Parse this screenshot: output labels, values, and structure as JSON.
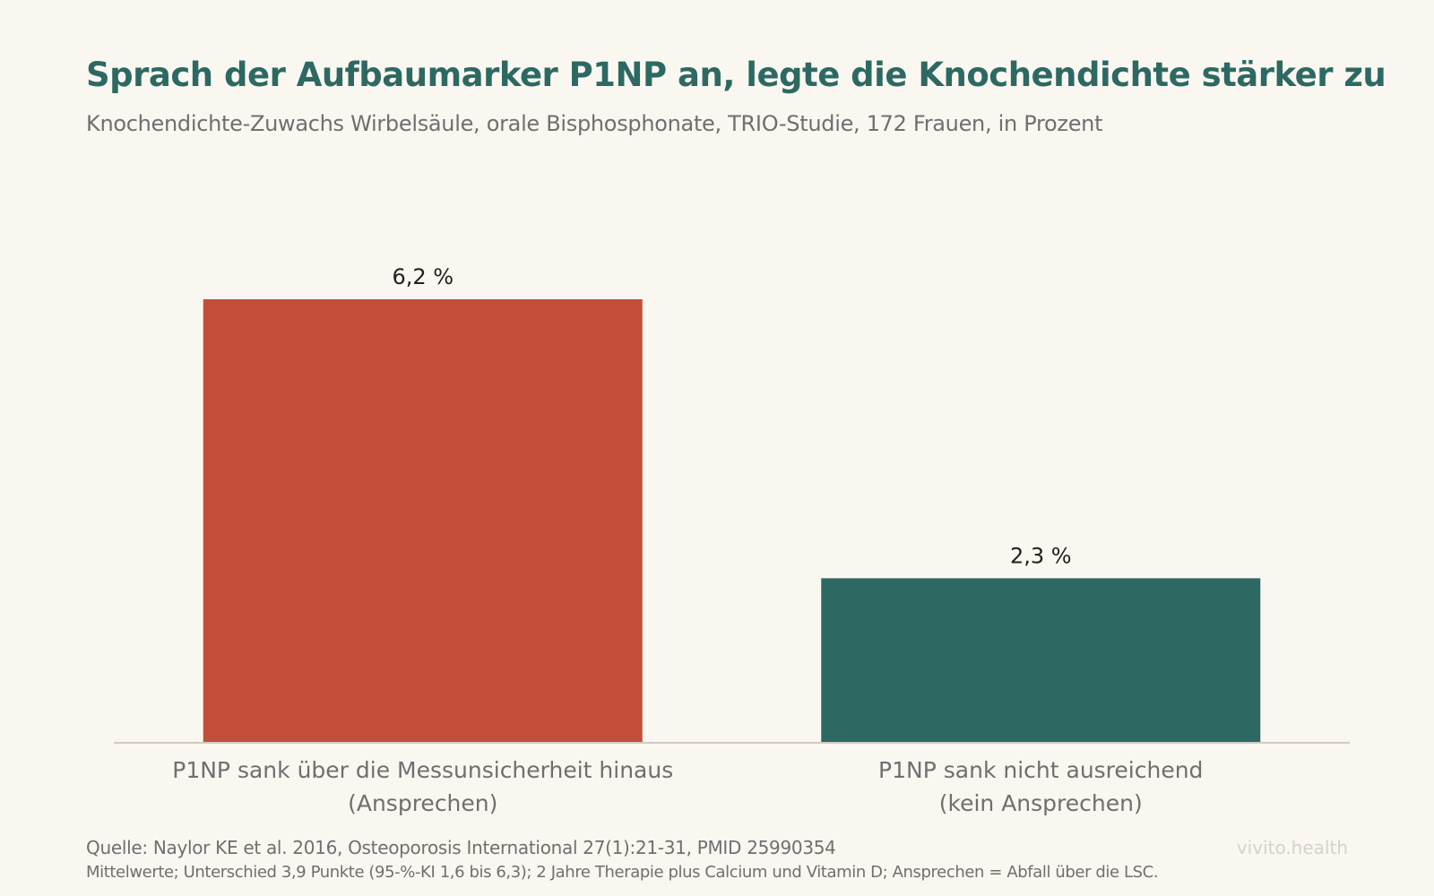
{
  "header": {
    "title": "Sprach der Aufbaumarker P1NP an, legte die Knochendichte stärker zu",
    "subtitle": "Knochendichte-Zuwachs Wirbelsäule, orale Bisphosphonate, TRIO-Studie, 172 Frauen, in Prozent"
  },
  "chart_data": {
    "type": "bar",
    "title": "Sprach der Aufbaumarker P1NP an, legte die Knochendichte stärker zu",
    "subtitle": "Knochendichte-Zuwachs Wirbelsäule, orale Bisphosphonate, TRIO-Studie, 172 Frauen, in Prozent",
    "categories": [
      [
        "P1NP sank über die Messunsicherheit hinaus",
        "(Ansprechen)"
      ],
      [
        "P1NP sank nicht ausreichend",
        "(kein Ansprechen)"
      ]
    ],
    "values": [
      6.2,
      2.3
    ],
    "value_labels": [
      "6,2 %",
      "2,3 %"
    ],
    "colors": [
      "#c24e3a",
      "#2d6962"
    ],
    "ylim": [
      0,
      6.2
    ],
    "grid": false,
    "xlabel": "",
    "ylabel": ""
  },
  "footer": {
    "source": "Quelle: Naylor KE et al. 2016, Osteoporosis International 27(1):21-31, PMID 25990354",
    "note": "Mittelwerte; Unterschied 3,9 Punkte (95-%-KI 1,6 bis 6,3); 2 Jahre Therapie plus Calcium und Vitamin D; Ansprechen = Abfall über die LSC.",
    "brand": "vivito.health"
  }
}
